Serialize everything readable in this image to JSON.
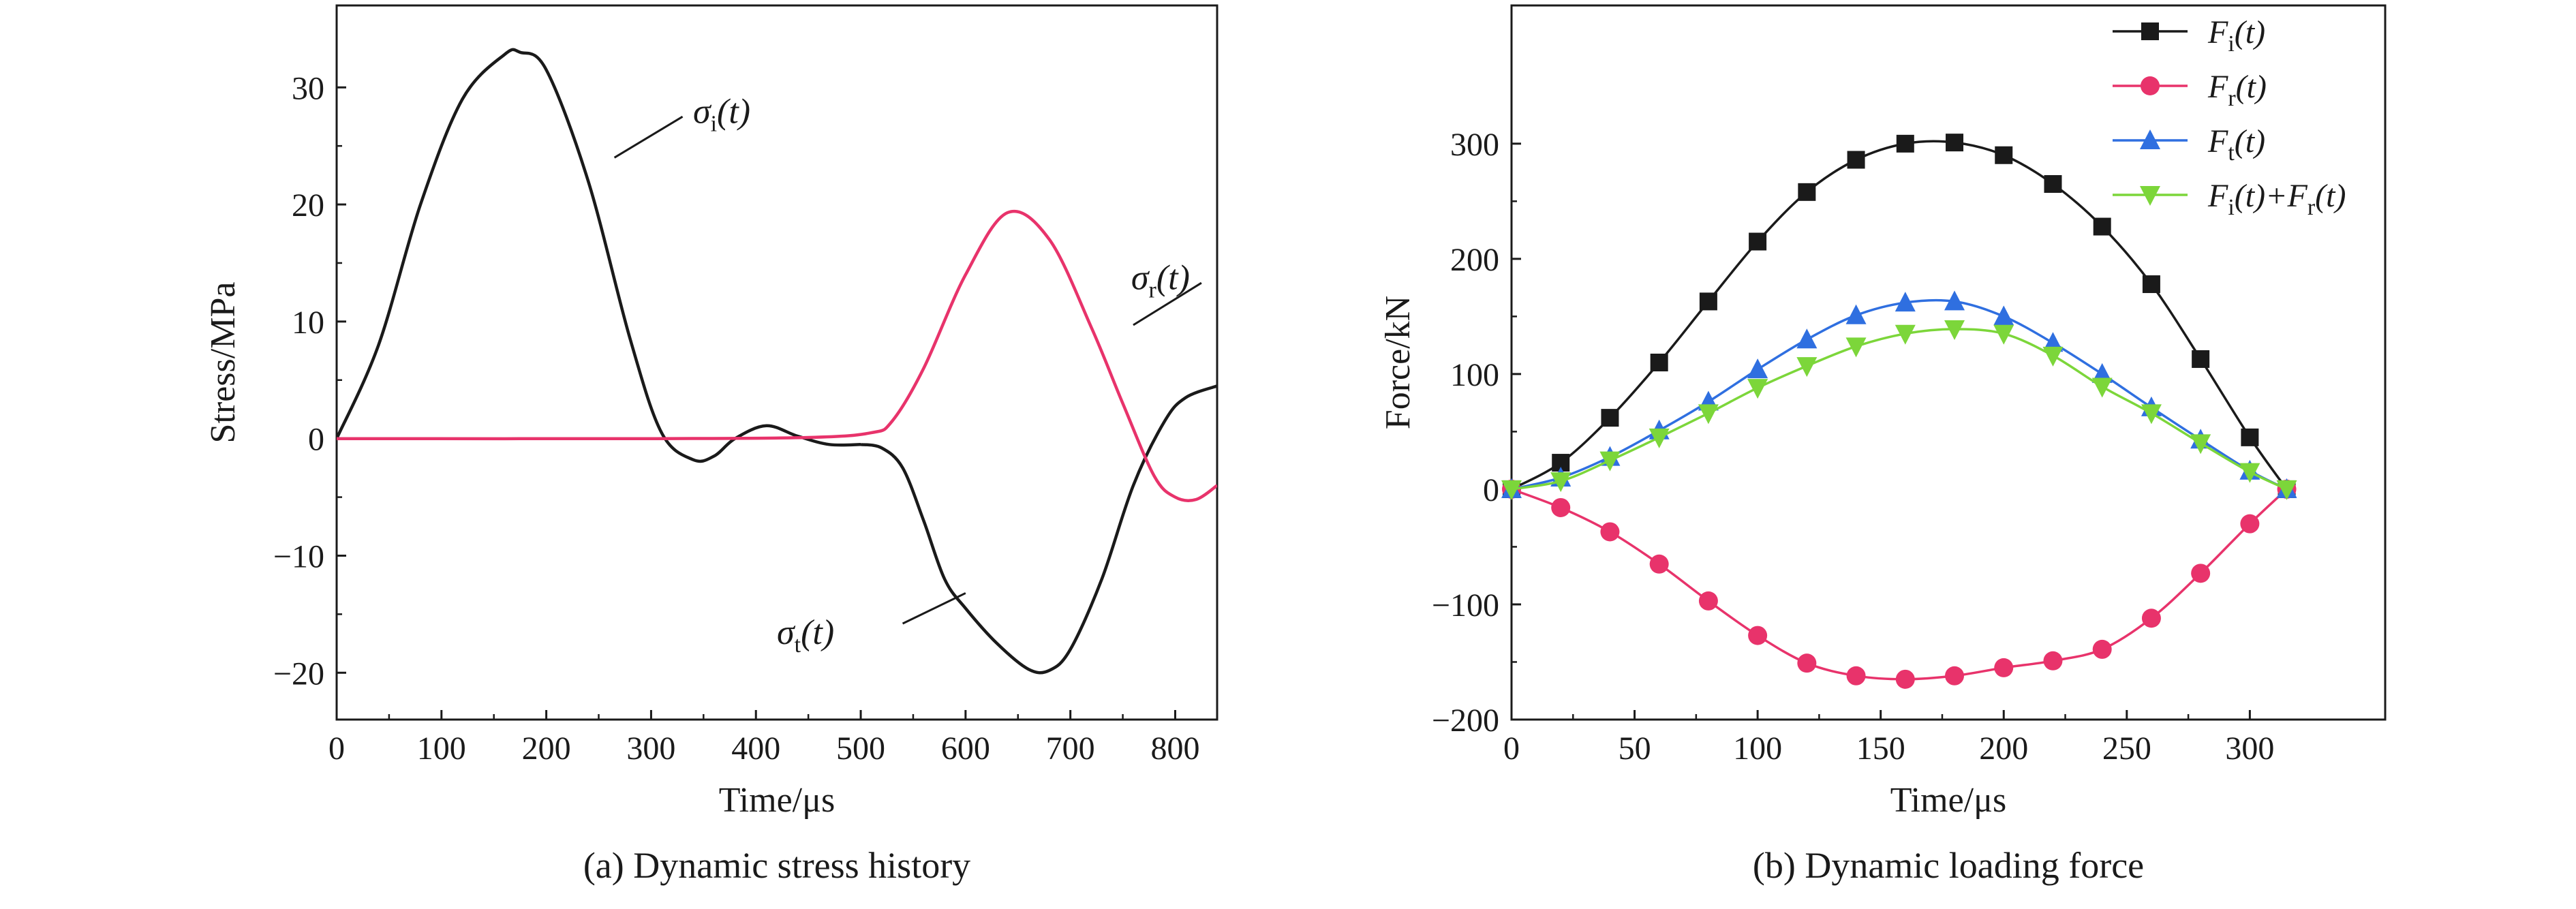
{
  "chart_data": [
    {
      "type": "line",
      "caption": "(a) Dynamic stress history",
      "xlabel": "Time/μs",
      "ylabel": "Stress/MPa",
      "xlim": [
        0,
        840
      ],
      "ylim": [
        -24,
        37
      ],
      "xticks": [
        0,
        100,
        200,
        300,
        400,
        500,
        600,
        700,
        800
      ],
      "yticks": [
        -20,
        -10,
        0,
        10,
        20,
        30
      ],
      "grid": false,
      "series": [
        {
          "name": "σi(t)",
          "label_main": "σ",
          "label_sub": "i",
          "label_tail": "(t)",
          "color": "#1a1a1a",
          "x": [
            0,
            40,
            80,
            120,
            160,
            175,
            200,
            240,
            280,
            310,
            340,
            360,
            380,
            410,
            440,
            470,
            500
          ],
          "y": [
            0,
            8,
            20,
            29,
            32.8,
            33,
            31.5,
            22,
            8.5,
            0.5,
            -1.8,
            -1.5,
            0,
            1.1,
            0.2,
            -0.5,
            -0.5
          ]
        },
        {
          "name": "σr(t)",
          "label_main": "σ",
          "label_sub": "r",
          "label_tail": "(t)",
          "color": "#e8336b",
          "x": [
            0,
            300,
            450,
            510,
            530,
            560,
            600,
            640,
            680,
            720,
            750,
            780,
            800,
            820,
            840
          ],
          "y": [
            0,
            0,
            0.1,
            0.5,
            1.5,
            6,
            14,
            19.3,
            17,
            9.5,
            3,
            -3.2,
            -5,
            -5.2,
            -4
          ]
        },
        {
          "name": "σt(t)",
          "label_main": "σ",
          "label_sub": "t",
          "label_tail": "(t)",
          "color": "#1a1a1a",
          "x": [
            500,
            520,
            540,
            560,
            580,
            600,
            630,
            660,
            680,
            700,
            730,
            760,
            790,
            810,
            840
          ],
          "y": [
            -0.5,
            -0.8,
            -2.5,
            -7,
            -12,
            -14.5,
            -17.5,
            -19.7,
            -19.8,
            -18,
            -12,
            -4,
            1.5,
            3.5,
            4.5
          ]
        }
      ]
    },
    {
      "type": "line",
      "caption": "(b) Dynamic loading force",
      "xlabel": "Time/μs",
      "ylabel": "Force/kN",
      "xlim": [
        0,
        355
      ],
      "ylim": [
        -200,
        420
      ],
      "xticks": [
        0,
        50,
        100,
        150,
        200,
        250,
        300
      ],
      "yticks": [
        -200,
        -100,
        0,
        100,
        200,
        300
      ],
      "grid": false,
      "legend": "top-right",
      "x": [
        0,
        20,
        40,
        60,
        80,
        100,
        120,
        140,
        160,
        180,
        200,
        220,
        240,
        260,
        280,
        300,
        315
      ],
      "series": [
        {
          "name": "Fi(t)",
          "label_main": "F",
          "label_sub": "i",
          "label_tail": "(t)",
          "marker": "square",
          "color": "#1a1a1a",
          "values": [
            0,
            23,
            62,
            110,
            163,
            215,
            258,
            286,
            300,
            301,
            290,
            265,
            228,
            178,
            113,
            45,
            0
          ]
        },
        {
          "name": "Fr(t)",
          "label_main": "F",
          "label_sub": "r",
          "label_tail": "(t)",
          "marker": "circle",
          "color": "#e8336b",
          "values": [
            0,
            -16,
            -37,
            -65,
            -97,
            -127,
            -151,
            -162,
            -165,
            -162,
            -155,
            -149,
            -139,
            -112,
            -73,
            -30,
            0
          ]
        },
        {
          "name": "Ft(t)",
          "label_main": "F",
          "label_sub": "t",
          "label_tail": "(t)",
          "marker": "triangle-up",
          "color": "#2f6fe0",
          "values": [
            0,
            10,
            28,
            51,
            76,
            104,
            130,
            151,
            162,
            163,
            150,
            127,
            100,
            71,
            43,
            16,
            0
          ]
        },
        {
          "name": "Fi(t)+Fr(t)",
          "label_main": "F",
          "label_sub": "i",
          "label_tail": "(t)+",
          "label_main2": "F",
          "label_sub2": "r",
          "label_tail2": "(t)",
          "marker": "triangle-down",
          "color": "#7cd63a",
          "values": [
            0,
            7,
            25,
            45,
            66,
            88,
            107,
            124,
            135,
            139,
            135,
            116,
            89,
            66,
            40,
            15,
            0
          ]
        }
      ]
    }
  ]
}
